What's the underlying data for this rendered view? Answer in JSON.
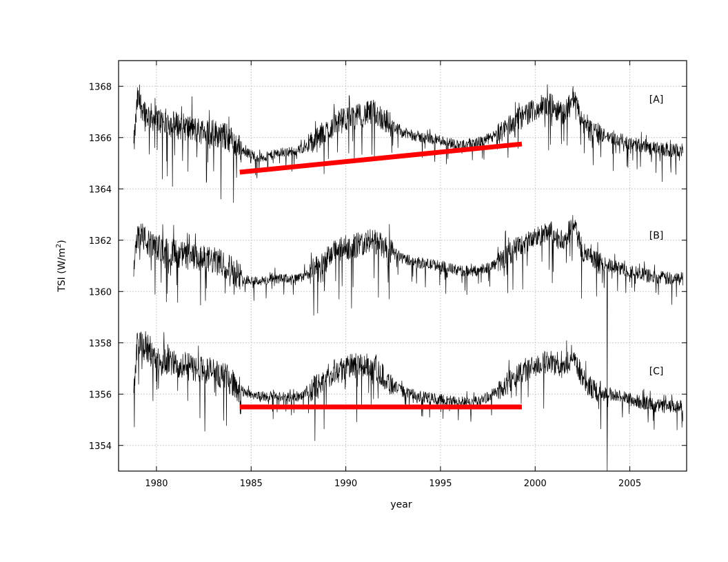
{
  "chart_data": {
    "type": "line",
    "xlabel": "year",
    "ylabel": "TSI (W/m",
    "ylabel_sup": "2",
    "ylabel_close": ")",
    "xlim": [
      1978,
      2008
    ],
    "ylim": [
      1353,
      1369
    ],
    "xticks": [
      "1980",
      "1985",
      "1990",
      "1995",
      "2000",
      "2005"
    ],
    "yticks": [
      "1354",
      "1356",
      "1358",
      "1360",
      "1362",
      "1364",
      "1366",
      "1368"
    ],
    "grid": true,
    "panel_labels": [
      "[A]",
      "[B]",
      "[C]"
    ],
    "series": [
      {
        "offset": 5,
        "envelope": {
          "x": [
            1978.8,
            1979.0,
            1979.5,
            1980,
            1981,
            1982,
            1983,
            1983.8,
            1984.5,
            1985.5,
            1986.5,
            1987.5,
            1988.5,
            1989.5,
            1990.5,
            1991.5,
            1992.2,
            1993,
            1994,
            1995,
            1996,
            1997,
            1998,
            1999,
            2000,
            2000.8,
            2001.5,
            2002.0,
            2002.5,
            2003,
            2004,
            2005,
            2006,
            2007,
            2007.8
          ],
          "y": [
            1360.6,
            1362.5,
            1361.9,
            1361.7,
            1361.5,
            1361.3,
            1361.2,
            1361.0,
            1360.5,
            1360.2,
            1360.4,
            1360.5,
            1360.9,
            1361.6,
            1361.8,
            1362.0,
            1361.6,
            1361.2,
            1361.0,
            1360.9,
            1360.7,
            1360.8,
            1361.1,
            1361.7,
            1362.1,
            1362.3,
            1361.9,
            1362.6,
            1361.6,
            1361.2,
            1361.0,
            1360.8,
            1360.6,
            1360.5,
            1360.5
          ]
        },
        "level_line": {
          "x": [
            1984.4,
            1999.3
          ],
          "y": [
            1364.65,
            1365.75
          ]
        }
      },
      {
        "offset": 0,
        "envelope": {
          "x": [
            1978.8,
            1979.0,
            1979.5,
            1980,
            1981,
            1982,
            1983,
            1983.8,
            1984.5,
            1985.5,
            1986.5,
            1987.5,
            1988.5,
            1989.5,
            1990.5,
            1991.5,
            1992.2,
            1993,
            1994,
            1995,
            1996,
            1997,
            1998,
            1999,
            2000,
            2000.8,
            2001.5,
            2002.0,
            2002.5,
            2003,
            2004,
            2005,
            2006,
            2007,
            2007.8
          ],
          "y": [
            1360.6,
            1362.5,
            1361.9,
            1361.7,
            1361.5,
            1361.3,
            1361.2,
            1361.0,
            1360.5,
            1360.4,
            1360.5,
            1360.5,
            1360.9,
            1361.6,
            1361.8,
            1362.0,
            1361.6,
            1361.3,
            1361.1,
            1361.0,
            1360.8,
            1360.8,
            1361.1,
            1361.7,
            1362.1,
            1362.3,
            1361.9,
            1362.6,
            1361.6,
            1361.2,
            1361.0,
            1360.8,
            1360.6,
            1360.5,
            1360.5
          ]
        },
        "level_line": null
      },
      {
        "offset": -5,
        "envelope": {
          "x": [
            1978.8,
            1979.0,
            1979.5,
            1980,
            1981,
            1982,
            1983,
            1983.8,
            1984.5,
            1985.5,
            1986.5,
            1987.5,
            1988.5,
            1989.5,
            1990.5,
            1991.5,
            1992.2,
            1993,
            1994,
            1995,
            1996,
            1997,
            1998,
            1999,
            2000,
            2000.8,
            2001.5,
            2002.0,
            2002.5,
            2003,
            2004,
            2005,
            2006,
            2007,
            2007.8
          ],
          "y": [
            1361.2,
            1363.2,
            1362.7,
            1362.4,
            1362.2,
            1362.0,
            1361.9,
            1361.6,
            1361.1,
            1360.9,
            1360.9,
            1360.9,
            1361.3,
            1362.0,
            1362.1,
            1362.1,
            1361.5,
            1361.1,
            1360.9,
            1360.8,
            1360.7,
            1360.7,
            1361.1,
            1361.7,
            1362.1,
            1362.3,
            1361.9,
            1362.6,
            1361.6,
            1361.2,
            1361.0,
            1360.8,
            1360.6,
            1360.5,
            1360.5
          ]
        },
        "level_line": {
          "x": [
            1984.4,
            1999.3
          ],
          "y": [
            1355.5,
            1355.5
          ]
        }
      }
    ],
    "colors": {
      "trace": "#000000",
      "trend": "#ff0000",
      "grid": "#c8c8c8",
      "axes": "#000000"
    }
  }
}
